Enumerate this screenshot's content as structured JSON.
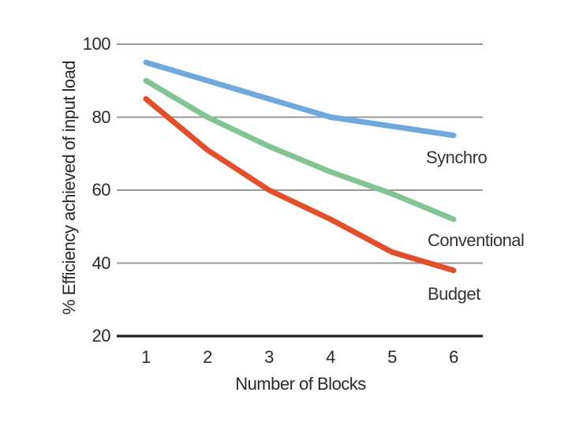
{
  "chart_data": {
    "type": "line",
    "title": "",
    "xlabel": "Number of Blocks",
    "ylabel": "% Efficiency achieved of input load",
    "x": [
      1,
      2,
      3,
      4,
      5,
      6
    ],
    "xtick_labels": [
      "1",
      "2",
      "3",
      "4",
      "5",
      "6"
    ],
    "yticks": [
      20,
      40,
      60,
      80,
      100
    ],
    "ytick_labels": [
      "20",
      "40",
      "60",
      "80",
      "100"
    ],
    "ylim": [
      20,
      100
    ],
    "xlim": [
      1,
      6
    ],
    "grid": "horizontal-only",
    "legend_position": "inline-right-of-lines",
    "series": [
      {
        "name": "Synchro",
        "color": "#6FA8DC",
        "values": [
          95,
          90,
          85,
          80,
          77.5,
          75
        ]
      },
      {
        "name": "Conventional",
        "color": "#82C493",
        "values": [
          90,
          80,
          72,
          65,
          59,
          52
        ]
      },
      {
        "name": "Budget",
        "color": "#E2502B",
        "values": [
          85,
          71,
          60,
          52,
          43,
          38
        ]
      }
    ]
  },
  "style_colors": {
    "gridline": "#999999",
    "axis": "#1f1f1f",
    "text": "#2a2a2a",
    "background": "#ffffff"
  }
}
